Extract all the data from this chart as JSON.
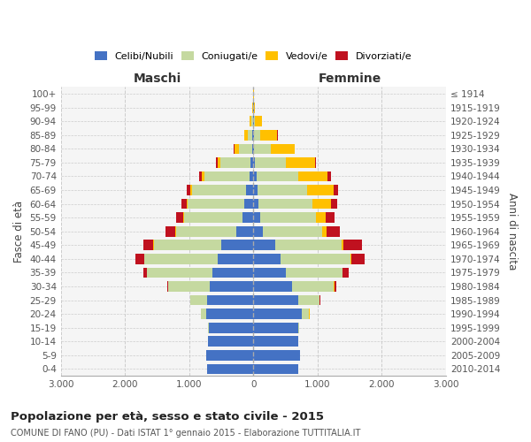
{
  "age_groups": [
    "100+",
    "95-99",
    "90-94",
    "85-89",
    "80-84",
    "75-79",
    "70-74",
    "65-69",
    "60-64",
    "55-59",
    "50-54",
    "45-49",
    "40-44",
    "35-39",
    "30-34",
    "25-29",
    "20-24",
    "15-19",
    "10-14",
    "5-9",
    "0-4"
  ],
  "birth_years": [
    "≤ 1914",
    "1915-1919",
    "1920-1924",
    "1925-1929",
    "1930-1934",
    "1935-1939",
    "1940-1944",
    "1945-1949",
    "1950-1954",
    "1955-1959",
    "1960-1964",
    "1965-1969",
    "1970-1974",
    "1975-1979",
    "1980-1984",
    "1985-1989",
    "1990-1994",
    "1995-1999",
    "2000-2004",
    "2005-2009",
    "2010-2014"
  ],
  "maschi": {
    "celibi": [
      2,
      4,
      8,
      12,
      18,
      40,
      65,
      110,
      140,
      170,
      260,
      500,
      560,
      640,
      680,
      720,
      730,
      690,
      710,
      740,
      720
    ],
    "coniugati": [
      2,
      6,
      18,
      75,
      210,
      470,
      700,
      840,
      880,
      910,
      950,
      1050,
      1140,
      1020,
      650,
      260,
      85,
      15,
      0,
      0,
      0
    ],
    "vedovi": [
      1,
      6,
      28,
      55,
      65,
      52,
      42,
      28,
      18,
      14,
      8,
      5,
      4,
      4,
      4,
      4,
      0,
      0,
      0,
      0,
      0
    ],
    "divorziati": [
      0,
      0,
      0,
      4,
      10,
      18,
      38,
      65,
      85,
      105,
      145,
      165,
      128,
      52,
      14,
      4,
      0,
      0,
      0,
      0,
      0
    ]
  },
  "femmine": {
    "nubili": [
      1,
      3,
      5,
      8,
      12,
      25,
      50,
      70,
      85,
      105,
      145,
      345,
      425,
      505,
      605,
      705,
      755,
      695,
      705,
      725,
      705
    ],
    "coniugate": [
      1,
      4,
      18,
      95,
      265,
      480,
      655,
      770,
      830,
      870,
      920,
      1035,
      1090,
      880,
      650,
      320,
      115,
      18,
      0,
      0,
      0
    ],
    "vedove": [
      1,
      22,
      115,
      270,
      360,
      455,
      455,
      410,
      295,
      148,
      75,
      28,
      8,
      8,
      4,
      4,
      4,
      0,
      0,
      0,
      0
    ],
    "divorziate": [
      0,
      0,
      0,
      4,
      8,
      18,
      52,
      70,
      90,
      145,
      205,
      280,
      205,
      95,
      28,
      8,
      4,
      0,
      0,
      0,
      0
    ]
  },
  "colors": {
    "celibi": "#4472c4",
    "coniugati": "#c5d9a0",
    "vedovi": "#ffc000",
    "divorziati": "#c0111f"
  },
  "xlim": 3000,
  "title": "Popolazione per età, sesso e stato civile - 2015",
  "subtitle": "COMUNE DI FANO (PU) - Dati ISTAT 1° gennaio 2015 - Elaborazione TUTTITALIA.IT",
  "ylabel_left": "Fasce di età",
  "ylabel_right": "Anni di nascita",
  "xlabel_maschi": "Maschi",
  "xlabel_femmine": "Femmine",
  "xtick_labels": [
    "3.000",
    "2.000",
    "1.000",
    "0",
    "1.000",
    "2.000",
    "3.000"
  ],
  "bg_color": "#f5f5f5",
  "grid_color": "#cccccc",
  "legend_labels": [
    "Celibi/Nubili",
    "Coniugati/e",
    "Vedovi/e",
    "Divorziati/e"
  ]
}
